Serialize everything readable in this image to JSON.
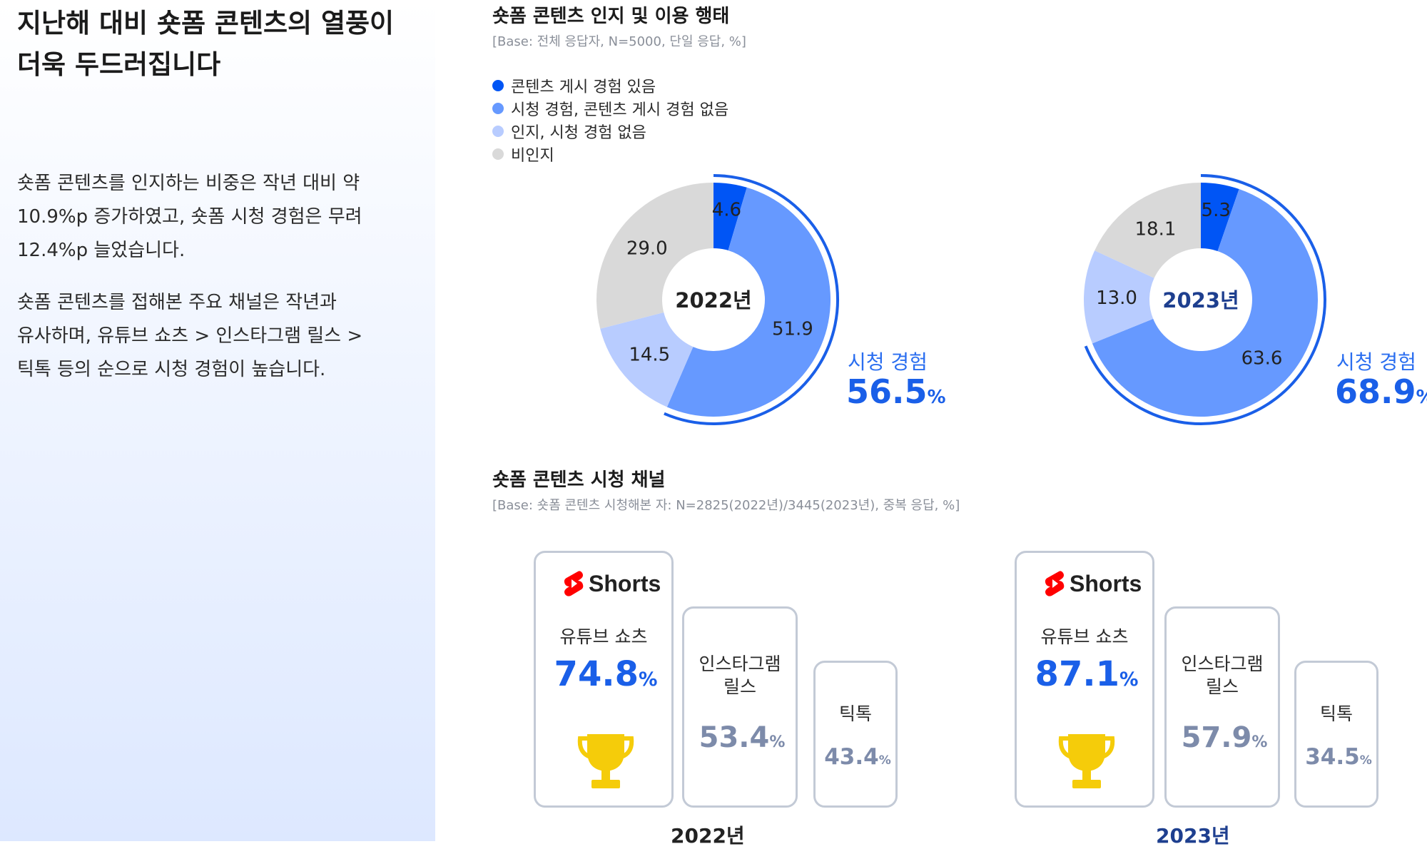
{
  "left": {
    "headline_line1": "지난해 대비 숏폼 콘텐츠의 열풍이",
    "headline_line2": "더욱 두드러집니다",
    "para1_lines": [
      "숏폼 콘텐츠를 인지하는 비중은 작년 대비 약",
      "10.9%p 증가하였고, 숏폼 시청 경험은 무려",
      "12.4%p 늘었습니다."
    ],
    "para2_lines": [
      "숏폼 콘텐츠를 접해본 주요 채널은 작년과",
      "유사하며, 유튜브 쇼츠 > 인스타그램 릴스 >",
      "틱톡 등의 순으로 시청 경험이 높습니다."
    ]
  },
  "section1": {
    "title": "숏폼 콘텐츠 인지 및 이용 행태",
    "base": "[Base: 전체 응답자, N=5000, 단일 응답, %]"
  },
  "section2": {
    "title": "숏폼 콘텐츠 시청 채널",
    "base": "[Base: 숏폼 콘텐츠 시청해본 자: N=2825(2022년)/3445(2023년), 중복 응답, %]"
  },
  "chart_data": [
    {
      "type": "pie",
      "center_label": "2022년",
      "categories": [
        "콘텐츠 게시 경험 있음",
        "시청 경험, 콘텐츠 게시 경험 없음",
        "인지, 시청 경험 없음",
        "비인지"
      ],
      "values": [
        4.6,
        51.9,
        14.5,
        29.0
      ],
      "value_labels": [
        "4.6",
        "51.9",
        "14.5",
        "29.0"
      ],
      "colors": [
        "#0055f5",
        "#6699ff",
        "#b8ccff",
        "#d9d9d9"
      ],
      "legend_position": "top-left",
      "annotation": {
        "label": "시청 경험",
        "value": "56.5",
        "unit": "%"
      }
    },
    {
      "type": "pie",
      "center_label": "2023년",
      "categories": [
        "콘텐츠 게시 경험 있음",
        "시청 경험, 콘텐츠 게시 경험 없음",
        "인지, 시청 경험 없음",
        "비인지"
      ],
      "values": [
        5.3,
        63.6,
        13.0,
        18.1
      ],
      "value_labels": [
        "5.3",
        "63.6",
        "13.0",
        "18.1"
      ],
      "colors": [
        "#0055f5",
        "#6699ff",
        "#b8ccff",
        "#d9d9d9"
      ],
      "annotation": {
        "label": "시청 경험",
        "value": "68.9",
        "unit": "%"
      }
    },
    {
      "type": "bar",
      "title": "2022년",
      "categories": [
        "유튜브 쇼츠",
        "인스타그램 릴스",
        "틱톡"
      ],
      "values": [
        74.8,
        53.4,
        43.4
      ]
    },
    {
      "type": "bar",
      "title": "2023년",
      "categories": [
        "유튜브 쇼츠",
        "인스타그램 릴스",
        "틱톡"
      ],
      "values": [
        87.1,
        57.9,
        34.5
      ]
    }
  ],
  "channels": {
    "shorts_logo_text": "Shorts",
    "unit": "%",
    "y2022": {
      "year_label": "2022년",
      "youtube": {
        "name": "유튜브 쇼츠",
        "value": "74.8"
      },
      "insta": {
        "name_line1": "인스타그램",
        "name_line2": "릴스",
        "value": "53.4"
      },
      "tiktok": {
        "name": "틱톡",
        "value": "43.4"
      }
    },
    "y2023": {
      "year_label": "2023년",
      "youtube": {
        "name": "유튜브 쇼츠",
        "value": "87.1"
      },
      "insta": {
        "name_line1": "인스타그램",
        "name_line2": "릴스",
        "value": "57.9"
      },
      "tiktok": {
        "name": "틱톡",
        "value": "34.5"
      }
    }
  },
  "colors": {
    "accent_blue": "#1a5fe8",
    "muted_value": "#7d8baa",
    "card_border": "#c3cad6",
    "shorts_red": "#ff0000",
    "trophy_gold": "#f5cc0a",
    "year_2023": "#1e3f8f"
  },
  "icons": [
    "youtube-shorts-icon",
    "trophy-icon"
  ]
}
